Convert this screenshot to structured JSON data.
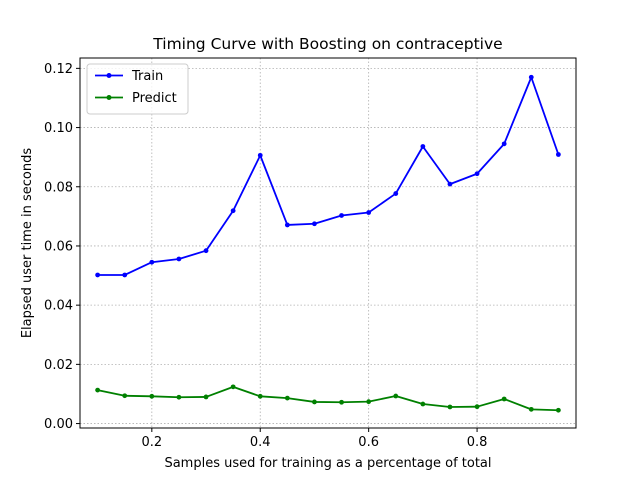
{
  "chart_data": {
    "type": "line",
    "title": "Timing Curve with Boosting on contraceptive",
    "xlabel": "Samples used for training as a percentage of total",
    "ylabel": "Elapsed user time in seconds",
    "xlim": [
      0.0675,
      0.9825
    ],
    "ylim": [
      -0.0015,
      0.1235
    ],
    "xticks": [
      0.2,
      0.4,
      0.6,
      0.8
    ],
    "xtick_labels": [
      "0.2",
      "0.4",
      "0.6",
      "0.8"
    ],
    "yticks": [
      0.0,
      0.02,
      0.04,
      0.06,
      0.08,
      0.1,
      0.12
    ],
    "ytick_labels": [
      "0.00",
      "0.02",
      "0.04",
      "0.06",
      "0.08",
      "0.10",
      "0.12"
    ],
    "grid": true,
    "legend_position": "top-left",
    "x": [
      0.1,
      0.15,
      0.2,
      0.25,
      0.3,
      0.35,
      0.4,
      0.45,
      0.5,
      0.55,
      0.6,
      0.65,
      0.7,
      0.75,
      0.8,
      0.85,
      0.9,
      0.95
    ],
    "series": [
      {
        "name": "Train",
        "color": "#0000ff",
        "values": [
          0.0502,
          0.0502,
          0.0545,
          0.0556,
          0.0584,
          0.0719,
          0.0906,
          0.0671,
          0.0675,
          0.0703,
          0.0713,
          0.0777,
          0.0936,
          0.0809,
          0.0844,
          0.0945,
          0.117,
          0.0909
        ]
      },
      {
        "name": "Predict",
        "color": "#008000",
        "values": [
          0.0113,
          0.0094,
          0.0092,
          0.0089,
          0.009,
          0.0124,
          0.0092,
          0.0086,
          0.0073,
          0.0072,
          0.0074,
          0.0093,
          0.0066,
          0.0056,
          0.0057,
          0.0083,
          0.0048,
          0.0045
        ]
      }
    ]
  }
}
